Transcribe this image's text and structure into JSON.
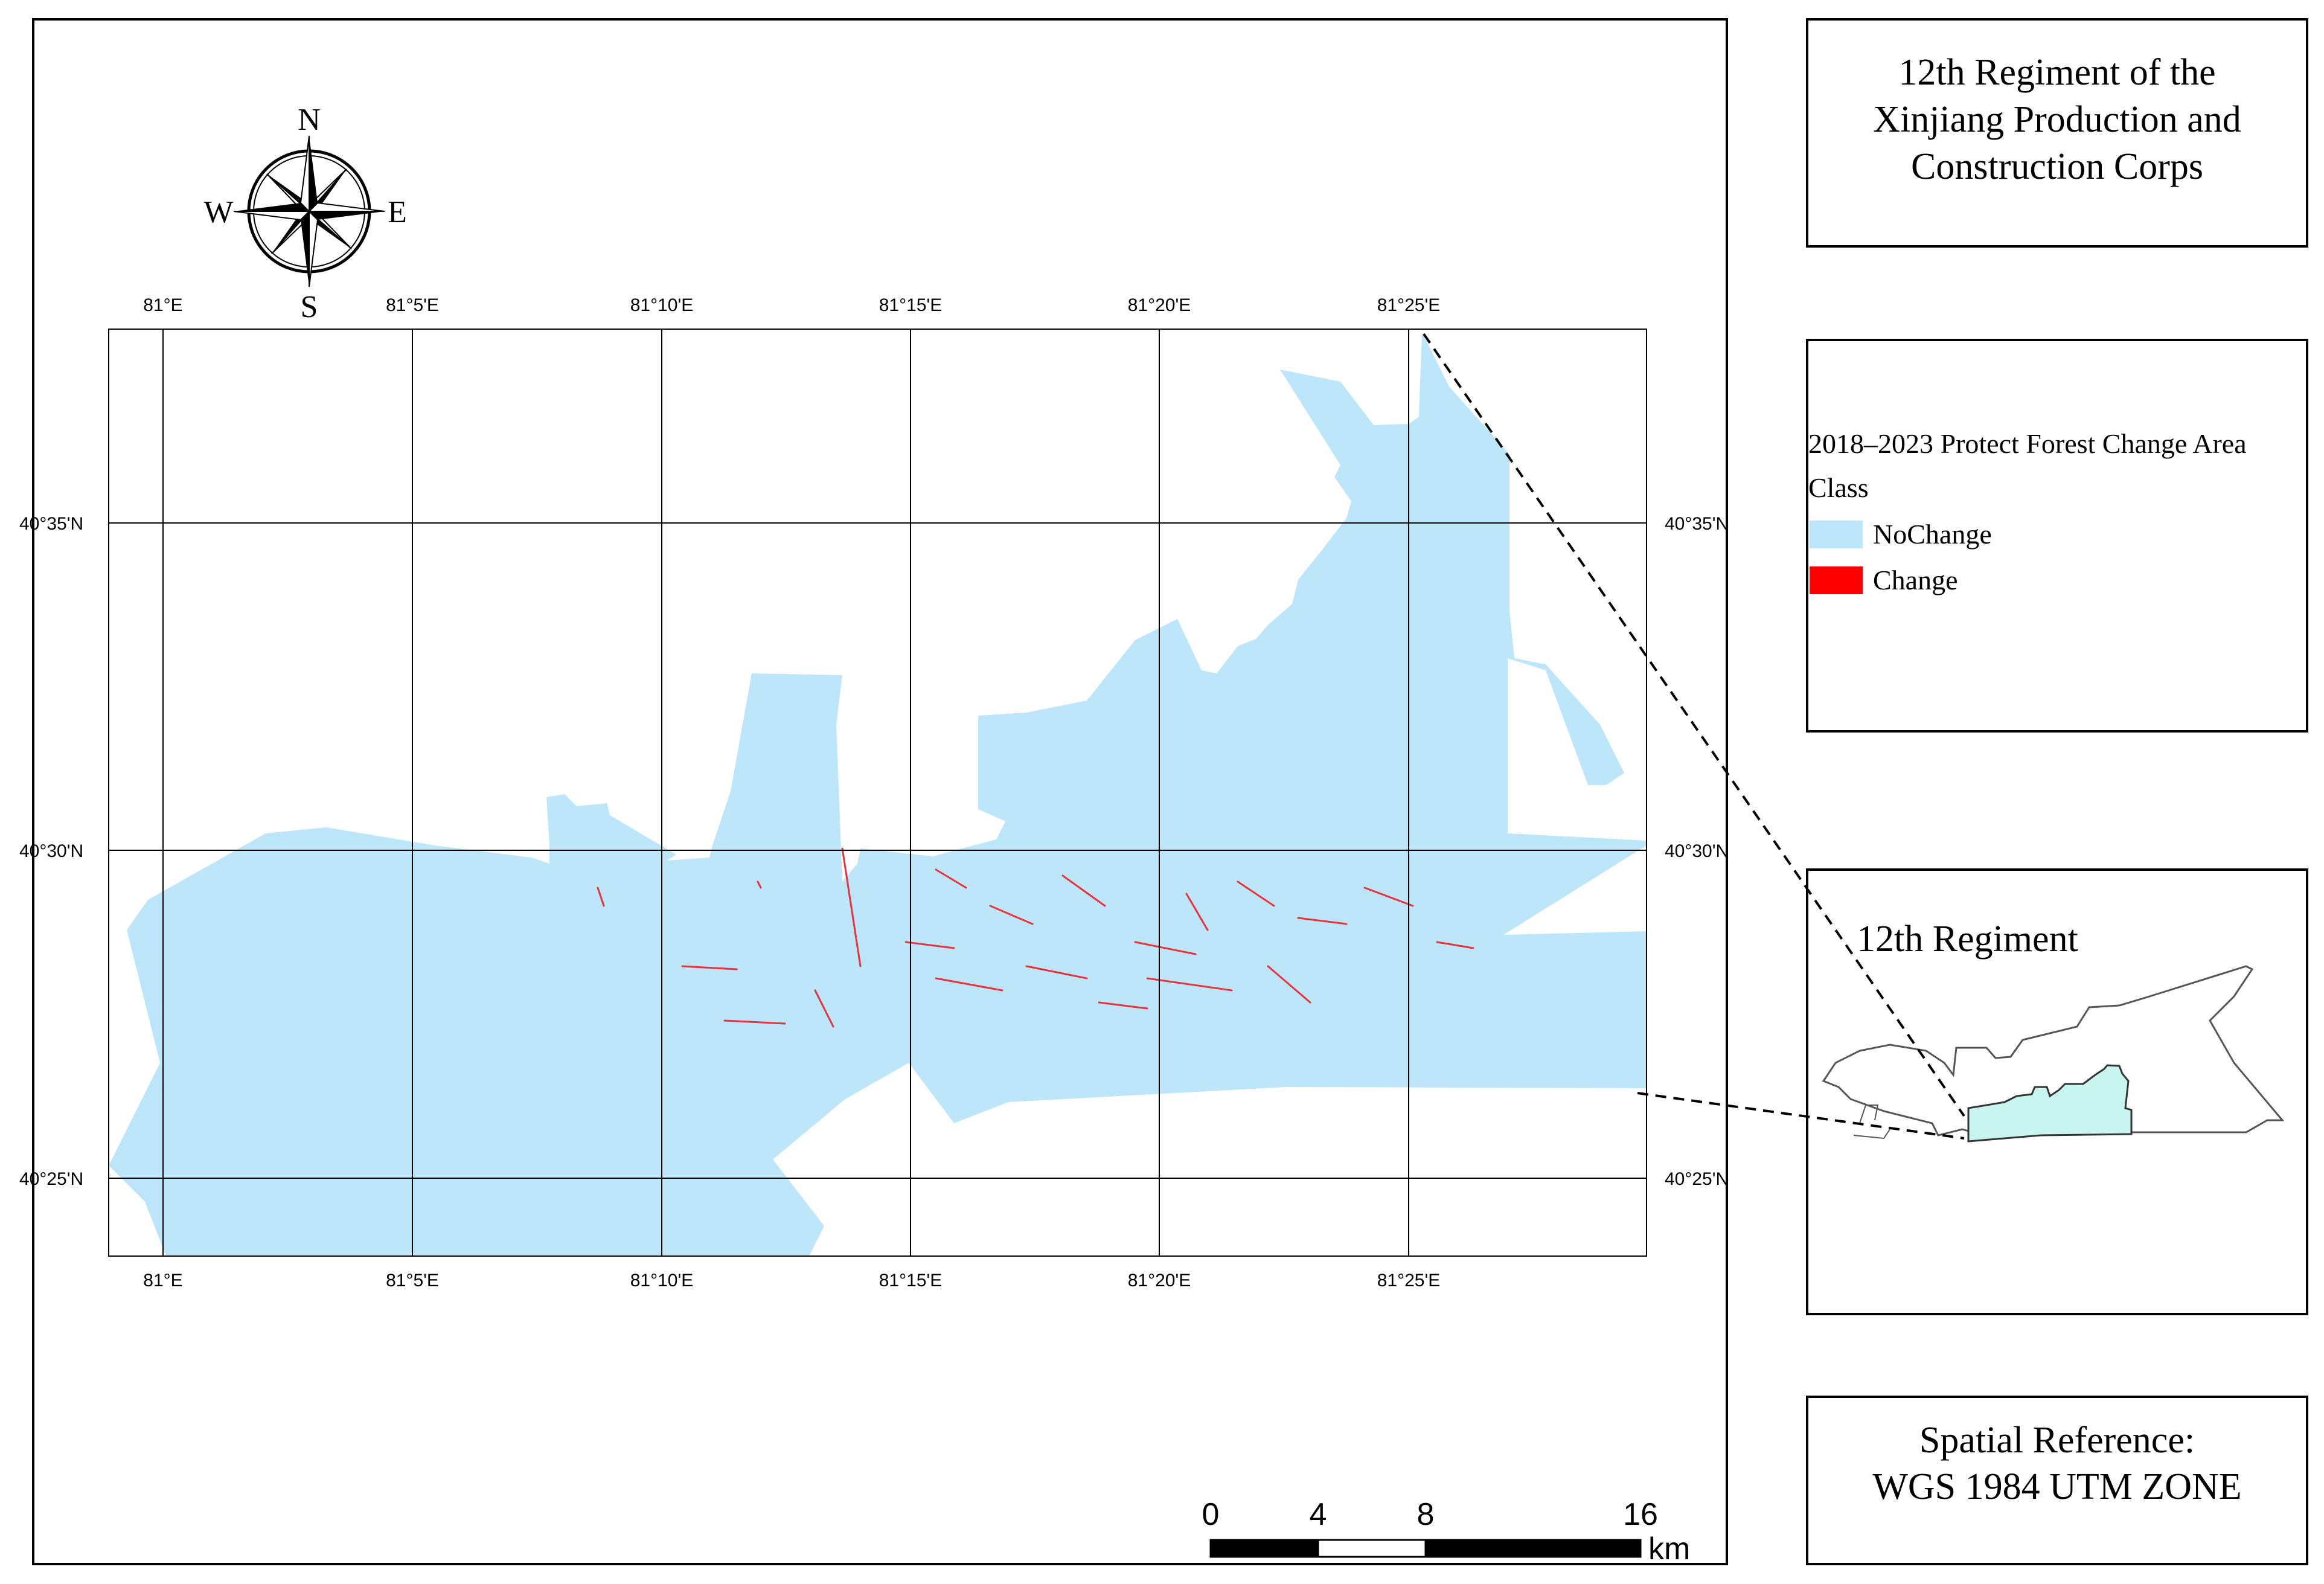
{
  "title_box": {
    "lines": [
      "12th Regiment of the",
      "Xinjiang Production and",
      "Construction Corps"
    ]
  },
  "compass": {
    "n": "N",
    "s": "S",
    "e": "E",
    "w": "W"
  },
  "grid": {
    "lon_labels": [
      "81°E",
      "81°5'E",
      "81°10'E",
      "81°15'E",
      "81°20'E",
      "81°25'E"
    ],
    "lat_labels": [
      "40°35'N",
      "40°30'N",
      "40°25'N"
    ]
  },
  "legend": {
    "title": "2018–2023 Protect Forest Change Area",
    "class_label": "Class",
    "items": [
      {
        "label": "NoChange",
        "color": "#bee6fa"
      },
      {
        "label": "Change",
        "color": "#ff0000"
      }
    ]
  },
  "inset": {
    "label": "12th Regiment"
  },
  "spatial_ref": {
    "lines": [
      "Spatial Reference:",
      "WGS 1984 UTM ZONE"
    ]
  },
  "scale_bar": {
    "ticks": [
      "0",
      "4",
      "8",
      "16"
    ],
    "unit": "km"
  },
  "colors": {
    "nochange": "#bee6fa",
    "change": "#e8323c",
    "inset_fill": "#c8f5f0"
  }
}
